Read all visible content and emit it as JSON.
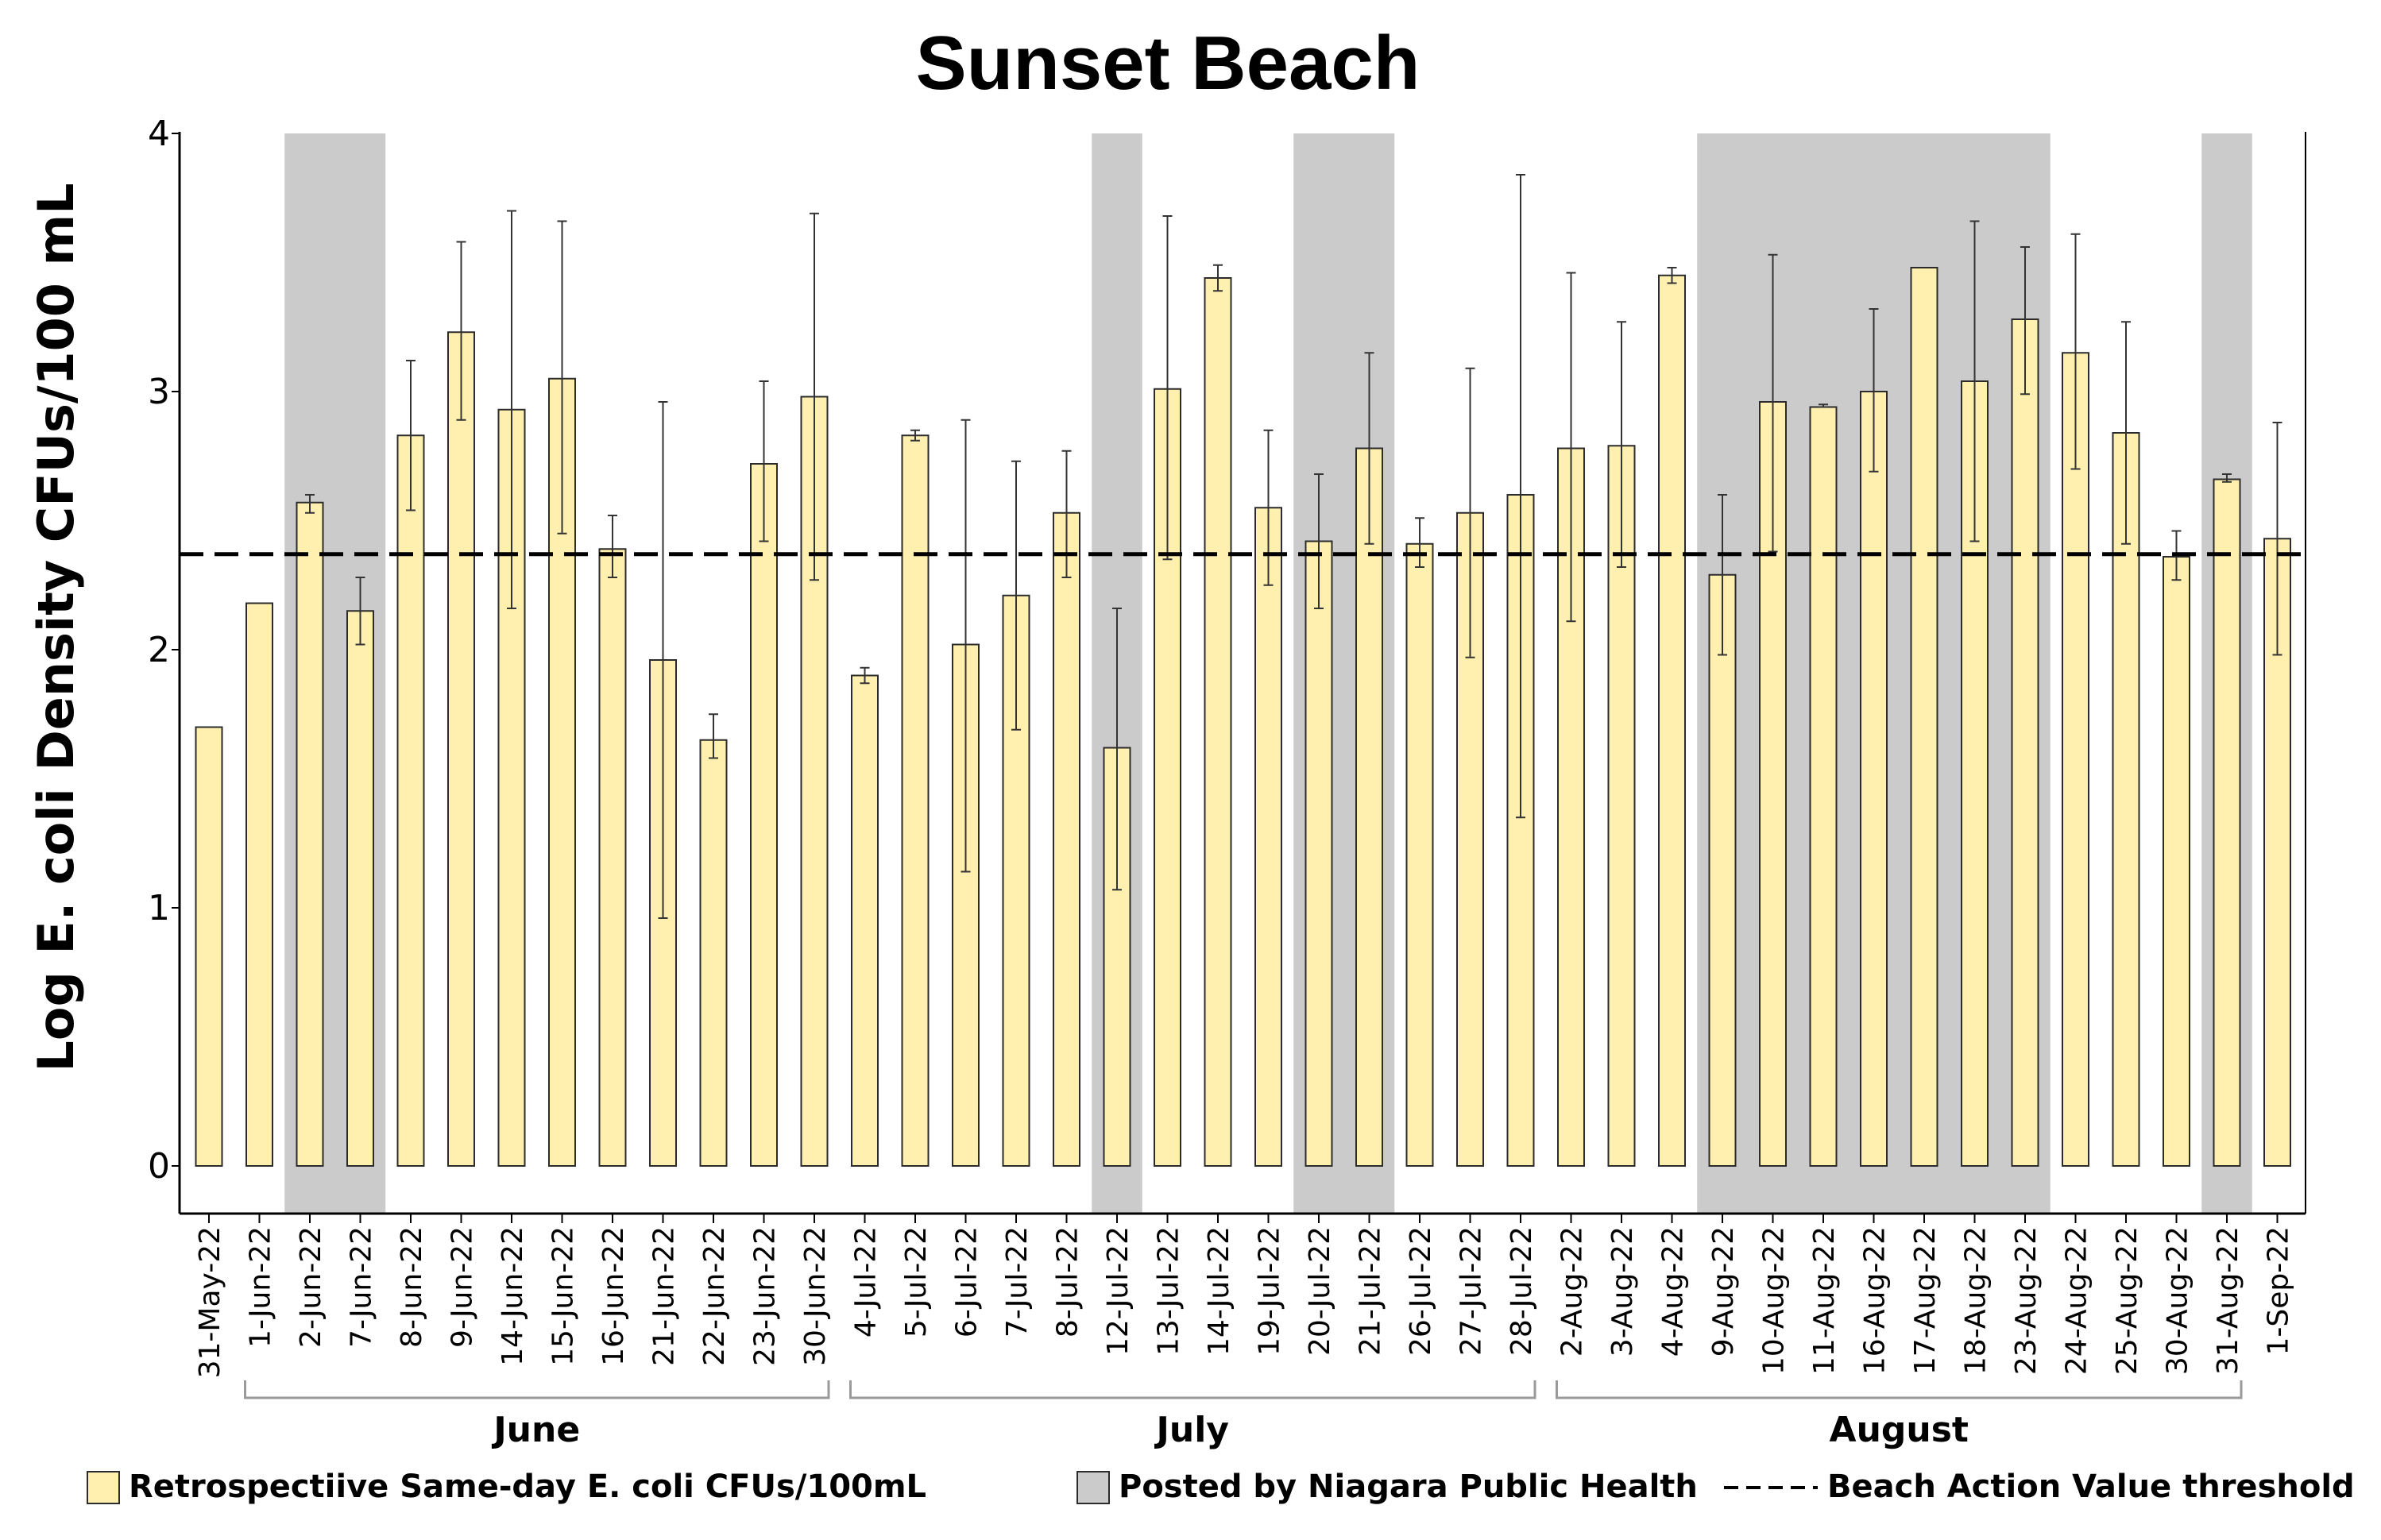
{
  "colors": {
    "bar_fill": "#FFF0B0",
    "bar_stroke": "#2b2b2b",
    "posted_fill": "#CBCBCB",
    "threshold": "#000000",
    "axis": "#000000",
    "bracket": "#9a9a9a"
  },
  "chart_data": {
    "type": "bar",
    "title": "Sunset Beach",
    "xlabel": "",
    "ylabel": "Log E. coli Density CFUs/100 mL",
    "ylim": [
      0,
      4
    ],
    "yticks": [
      "0",
      "1",
      "2",
      "3",
      "4"
    ],
    "threshold": {
      "name": "Beach Action Value threshold",
      "value": 2.37
    },
    "categories": [
      "31-May-22",
      "1-Jun-22",
      "2-Jun-22",
      "7-Jun-22",
      "8-Jun-22",
      "9-Jun-22",
      "14-Jun-22",
      "15-Jun-22",
      "16-Jun-22",
      "21-Jun-22",
      "22-Jun-22",
      "23-Jun-22",
      "30-Jun-22",
      "4-Jul-22",
      "5-Jul-22",
      "6-Jul-22",
      "7-Jul-22",
      "8-Jul-22",
      "12-Jul-22",
      "13-Jul-22",
      "14-Jul-22",
      "19-Jul-22",
      "20-Jul-22",
      "21-Jul-22",
      "26-Jul-22",
      "27-Jul-22",
      "28-Jul-22",
      "2-Aug-22",
      "3-Aug-22",
      "4-Aug-22",
      "9-Aug-22",
      "10-Aug-22",
      "11-Aug-22",
      "16-Aug-22",
      "17-Aug-22",
      "18-Aug-22",
      "23-Aug-22",
      "24-Aug-22",
      "25-Aug-22",
      "30-Aug-22",
      "31-Aug-22",
      "1-Sep-22"
    ],
    "series": [
      {
        "name": "Retrospectiive Same-day E. coli CFUs/100mL",
        "values": [
          1.7,
          2.18,
          2.57,
          2.15,
          2.83,
          3.23,
          2.93,
          3.05,
          2.39,
          1.96,
          1.65,
          2.72,
          2.98,
          1.9,
          2.83,
          2.02,
          2.21,
          2.53,
          1.62,
          3.01,
          3.44,
          2.55,
          2.42,
          2.78,
          2.41,
          2.53,
          2.6,
          2.78,
          2.79,
          3.45,
          2.29,
          2.96,
          2.94,
          3.0,
          3.48,
          3.04,
          3.28,
          3.15,
          2.84,
          2.36,
          2.66,
          2.43
        ],
        "err_low": [
          null,
          null,
          2.53,
          2.02,
          2.54,
          2.89,
          2.16,
          2.45,
          2.28,
          0.96,
          1.58,
          2.42,
          2.27,
          1.87,
          2.81,
          1.14,
          1.69,
          2.28,
          1.07,
          2.35,
          3.39,
          2.25,
          2.16,
          2.41,
          2.32,
          1.97,
          1.35,
          2.11,
          2.32,
          3.42,
          1.98,
          2.38,
          2.94,
          2.69,
          null,
          2.42,
          2.99,
          2.7,
          2.41,
          2.27,
          2.65,
          1.98
        ],
        "err_high": [
          null,
          null,
          2.6,
          2.28,
          3.12,
          3.58,
          3.7,
          3.66,
          2.52,
          2.96,
          1.75,
          3.04,
          3.69,
          1.93,
          2.85,
          2.89,
          2.73,
          2.77,
          2.16,
          3.68,
          3.49,
          2.85,
          2.68,
          3.15,
          2.51,
          3.09,
          3.84,
          3.46,
          3.27,
          3.48,
          2.6,
          3.53,
          2.95,
          3.32,
          null,
          3.66,
          3.56,
          3.61,
          3.27,
          2.46,
          2.68,
          2.88
        ]
      }
    ],
    "posted_periods": [
      {
        "from": "2-Jun-22",
        "to": "7-Jun-22"
      },
      {
        "from": "12-Jul-22",
        "to": "12-Jul-22"
      },
      {
        "from": "20-Jul-22",
        "to": "21-Jul-22"
      },
      {
        "from": "9-Aug-22",
        "to": "23-Aug-22"
      },
      {
        "from": "31-Aug-22",
        "to": "31-Aug-22"
      }
    ],
    "month_groups": [
      {
        "label": "June",
        "from": "1-Jun-22",
        "to": "30-Jun-22"
      },
      {
        "label": "July",
        "from": "4-Jul-22",
        "to": "28-Jul-22"
      },
      {
        "label": "August",
        "from": "2-Aug-22",
        "to": "31-Aug-22"
      }
    ],
    "legend": [
      {
        "symbol": "bar",
        "label": "Retrospectiive Same-day E. coli CFUs/100mL"
      },
      {
        "symbol": "posted",
        "label": "Posted by Niagara Public Health"
      },
      {
        "symbol": "threshold",
        "label": "Beach Action Value threshold"
      }
    ]
  }
}
